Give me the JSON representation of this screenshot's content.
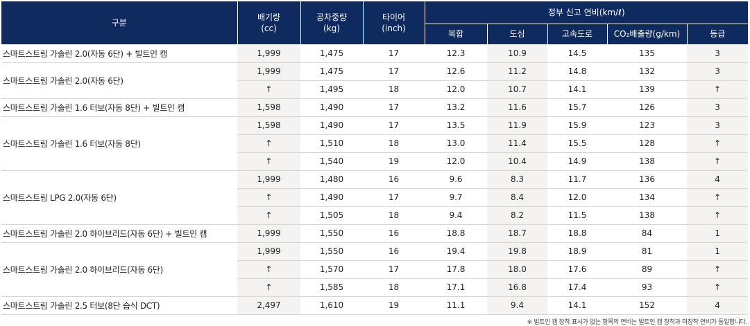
{
  "header": {
    "category": "구분",
    "displacement": [
      "배기량",
      "(cc)"
    ],
    "curb_weight": [
      "공차중량",
      "(kg)"
    ],
    "tire": [
      "타이어",
      "(inch)"
    ],
    "fuel_group": "정부 신고 연비(km/ℓ)",
    "sub": [
      "복합",
      "도심",
      "고속도로",
      "CO₂배출량(g/km)",
      "등급"
    ]
  },
  "groups": [
    {
      "label": "스마트스트림 가솔린 2.0(자동 6단) + 빌트인 캠",
      "rows": [
        [
          "1,999",
          "1,475",
          "17",
          "12.3",
          "10.9",
          "14.5",
          "135",
          "3"
        ]
      ]
    },
    {
      "label": "스마트스트림 가솔린 2.0(자동 6단)",
      "rows": [
        [
          "1,999",
          "1,475",
          "17",
          "12.6",
          "11.2",
          "14.8",
          "132",
          "3"
        ],
        [
          "↑",
          "1,495",
          "18",
          "12.0",
          "10.7",
          "14.1",
          "139",
          "↑"
        ]
      ]
    },
    {
      "label": "스마트스트림 가솔린 1.6 터보(자동 8단) + 빌트인 캠",
      "rows": [
        [
          "1,598",
          "1,490",
          "17",
          "13.2",
          "11.6",
          "15.7",
          "126",
          "3"
        ]
      ]
    },
    {
      "label": "스마트스트림 가솔린 1.6 터보(자동 8단)",
      "rows": [
        [
          "1,598",
          "1,490",
          "17",
          "13.5",
          "11.9",
          "15.9",
          "123",
          "3"
        ],
        [
          "↑",
          "1,510",
          "18",
          "13.0",
          "11.4",
          "15.5",
          "128",
          "↑"
        ],
        [
          "↑",
          "1,540",
          "19",
          "12.0",
          "10.4",
          "14.9",
          "138",
          "↑"
        ]
      ]
    },
    {
      "label": "스마트스트림 LPG 2.0(자동 6단)",
      "rows": [
        [
          "1,999",
          "1,480",
          "16",
          "9.6",
          "8.3",
          "11.7",
          "136",
          "4"
        ],
        [
          "↑",
          "1,490",
          "17",
          "9.7",
          "8.4",
          "12.0",
          "134",
          "↑"
        ],
        [
          "↑",
          "1,505",
          "18",
          "9.4",
          "8.2",
          "11.5",
          "138",
          "↑"
        ]
      ]
    },
    {
      "label": "스마트스트림 가솔린 2.0 하이브리드(자동 6단) + 빌트인 캠",
      "rows": [
        [
          "1,999",
          "1,550",
          "16",
          "18.8",
          "18.7",
          "18.8",
          "84",
          "1"
        ]
      ]
    },
    {
      "label": "스마트스트림 가솔린 2.0 하이브리드(자동 6단)",
      "rows": [
        [
          "1,999",
          "1,550",
          "16",
          "19.4",
          "19.8",
          "18.9",
          "81",
          "1"
        ],
        [
          "↑",
          "1,570",
          "17",
          "17.8",
          "18.0",
          "17.6",
          "89",
          "↑"
        ],
        [
          "↑",
          "1,585",
          "18",
          "17.1",
          "16.8",
          "17.4",
          "93",
          "↑"
        ]
      ]
    },
    {
      "label": "스마트스트림 가솔린 2.5 터보(8단 습식 DCT)",
      "rows": [
        [
          "2,497",
          "1,610",
          "19",
          "11.1",
          "9.4",
          "14.1",
          "152",
          "4"
        ]
      ]
    }
  ],
  "footnote": "※ 빌트인 캠 장착 표시가 없는 항목의 연비는 빌트인 캠 장착과 미장착 연비가 동일합니다."
}
